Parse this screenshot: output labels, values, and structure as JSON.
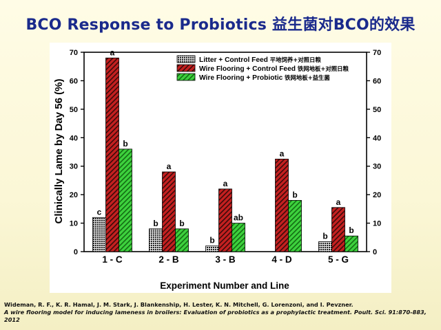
{
  "slide": {
    "title": "BCO Response to Probiotics 益生菌对BCO的效果"
  },
  "citation": {
    "line1": "Wideman, R. F., K. R. Hamal, J. M. Stark, J. Blankenship, H. Lester, K. N. Mitchell, G. Lorenzoni, and I. Pevzner.",
    "line2": "A wire flooring model for inducing lameness in broilers: Evaluation of probiotics as a prophylactic treatment. Poult. Sci. 91:870-883, 2012"
  },
  "chart_data": {
    "type": "bar",
    "title": "",
    "xlabel": "Experiment Number and Line",
    "ylabel": "Clinically Lame by Day 56 (%)",
    "ylim": [
      0,
      70
    ],
    "yticks": [
      0,
      10,
      20,
      30,
      40,
      50,
      60,
      70
    ],
    "categories": [
      "1 - C",
      "2 - B",
      "3 - B",
      "4 - D",
      "5 - G"
    ],
    "legend_position": "top-right",
    "grid": false,
    "series": [
      {
        "name": "Litter + Control Feed",
        "name_cn": "平地饲养+对照日粮",
        "color": "#333333",
        "pattern": "dots",
        "values": [
          12,
          8,
          2,
          null,
          3.5
        ],
        "labels": [
          "c",
          "b",
          "b",
          "",
          "b"
        ]
      },
      {
        "name": "Wire Flooring + Control Feed",
        "name_cn": "铁网地板+对照日粮",
        "color": "#b51a1a",
        "pattern": "hatch",
        "values": [
          68,
          28,
          22,
          32.5,
          15.5
        ],
        "labels": [
          "a",
          "a",
          "a",
          "a",
          "a"
        ]
      },
      {
        "name": "Wire Flooring + Probiotic",
        "name_cn": "铁网地板+益生菌",
        "color": "#2fc42f",
        "pattern": "hatch",
        "values": [
          36,
          8,
          10,
          18,
          5.5
        ],
        "labels": [
          "b",
          "b",
          "ab",
          "b",
          "b"
        ]
      }
    ]
  }
}
